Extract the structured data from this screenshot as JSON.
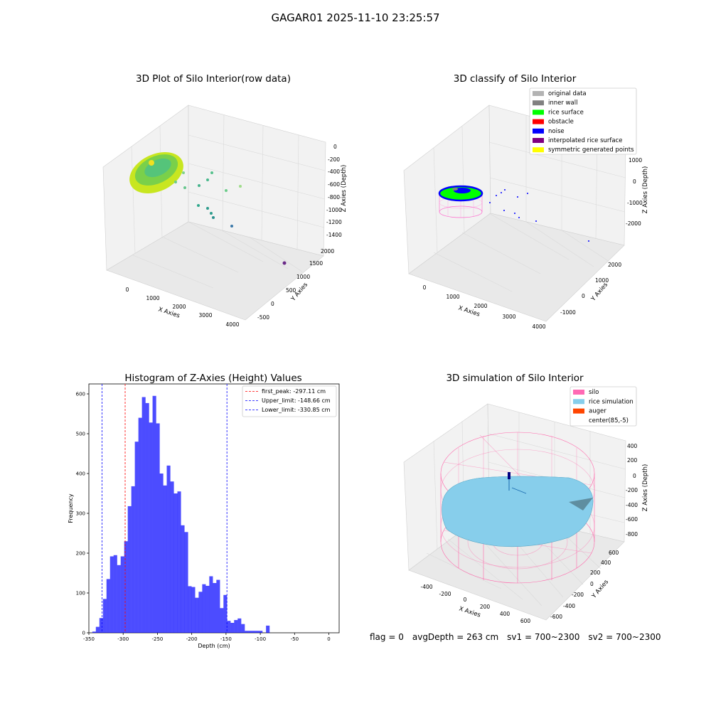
{
  "suptitle": "GAGAR01 2025-11-10 23:25:57",
  "panels": {
    "raw": {
      "title": "3D Plot of Silo Interior(row data)",
      "xlabel": "X Axies",
      "ylabel": "Y Axies",
      "zlabel": "Z Axies (Depth)",
      "x_ticks": [
        "0",
        "1000",
        "2000",
        "3000",
        "4000"
      ],
      "y_ticks": [
        "-500",
        "0",
        "500",
        "1000",
        "1500",
        "2000"
      ],
      "z_ticks": [
        "0",
        "-200",
        "-400",
        "-600",
        "-800",
        "-1000",
        "-1200",
        "-1400"
      ]
    },
    "classify": {
      "title": "3D classify of Silo Interior",
      "xlabel": "X Axies",
      "ylabel": "Y Axies",
      "zlabel": "Z Axies (Depth)",
      "x_ticks": [
        "0",
        "1000",
        "2000",
        "3000",
        "4000"
      ],
      "y_ticks": [
        "-1000",
        "0",
        "1000",
        "2000"
      ],
      "z_ticks": [
        "1000",
        "0",
        "-1000",
        "-2000"
      ],
      "legend": [
        {
          "label": "original data",
          "color": "#b3b3b3"
        },
        {
          "label": "inner wall",
          "color": "#808080"
        },
        {
          "label": "rice surface",
          "color": "#00ff00"
        },
        {
          "label": "obstacle",
          "color": "#ff0000"
        },
        {
          "label": "noise",
          "color": "#0000ff"
        },
        {
          "label": "interpolated rice surface",
          "color": "#800080"
        },
        {
          "label": "symmetric generated points",
          "color": "#ffff00"
        }
      ]
    },
    "simulation": {
      "title": "3D simulation of Silo Interior",
      "xlabel": "X Axies",
      "ylabel": "Y Axies",
      "zlabel": "Z Axies (Depth)",
      "x_ticks": [
        "-400",
        "-200",
        "0",
        "200",
        "400",
        "600"
      ],
      "y_ticks": [
        "-600",
        "-400",
        "-200",
        "0",
        "200",
        "400",
        "600"
      ],
      "z_ticks": [
        "400",
        "200",
        "0",
        "-200",
        "-400",
        "-600",
        "-800"
      ],
      "legend": [
        {
          "label": "silo",
          "color": "#ff69b4"
        },
        {
          "label": "rice simulation",
          "color": "#87ceeb"
        },
        {
          "label": "auger",
          "color": "#ff4500"
        },
        {
          "label": "center(85,-5)",
          "color": "#ffffff"
        }
      ]
    }
  },
  "status": {
    "flag": "flag = 0",
    "avg_depth": "avgDepth = 263 cm",
    "sv1": "sv1 = 700~2300",
    "sv2": "sv2 = 700~2300"
  },
  "chart_data": [
    {
      "type": "histogram",
      "title": "Histogram of Z-Axies (Height) Values",
      "xlabel": "Depth (cm)",
      "ylabel": "Frequency",
      "xlim": [
        -350,
        15
      ],
      "ylim": [
        0,
        625
      ],
      "x_ticks": [
        -350,
        -300,
        -250,
        -200,
        -150,
        -100,
        -50,
        0
      ],
      "y_ticks": [
        0,
        100,
        200,
        300,
        400,
        500,
        600
      ],
      "bar_color": "#0000ff",
      "bin_start": -345,
      "bin_width": 5.17,
      "values": [
        3,
        15,
        37,
        85,
        135,
        192,
        195,
        170,
        192,
        230,
        318,
        368,
        480,
        540,
        592,
        577,
        528,
        595,
        526,
        400,
        370,
        420,
        380,
        350,
        355,
        270,
        253,
        117,
        115,
        88,
        103,
        122,
        118,
        142,
        125,
        133,
        62,
        95,
        30,
        25,
        32,
        36,
        22,
        5,
        5,
        5,
        5,
        5,
        0,
        18
      ],
      "vlines": [
        {
          "label": "first_peak: -297.11 cm",
          "x": -297.11,
          "color": "#ff0000"
        },
        {
          "label": "Upper_limit: -148.66 cm",
          "x": -148.66,
          "color": "#0000ff"
        },
        {
          "label": "Lower_limit: -330.85 cm",
          "x": -330.85,
          "color": "#0000ff"
        }
      ]
    }
  ]
}
